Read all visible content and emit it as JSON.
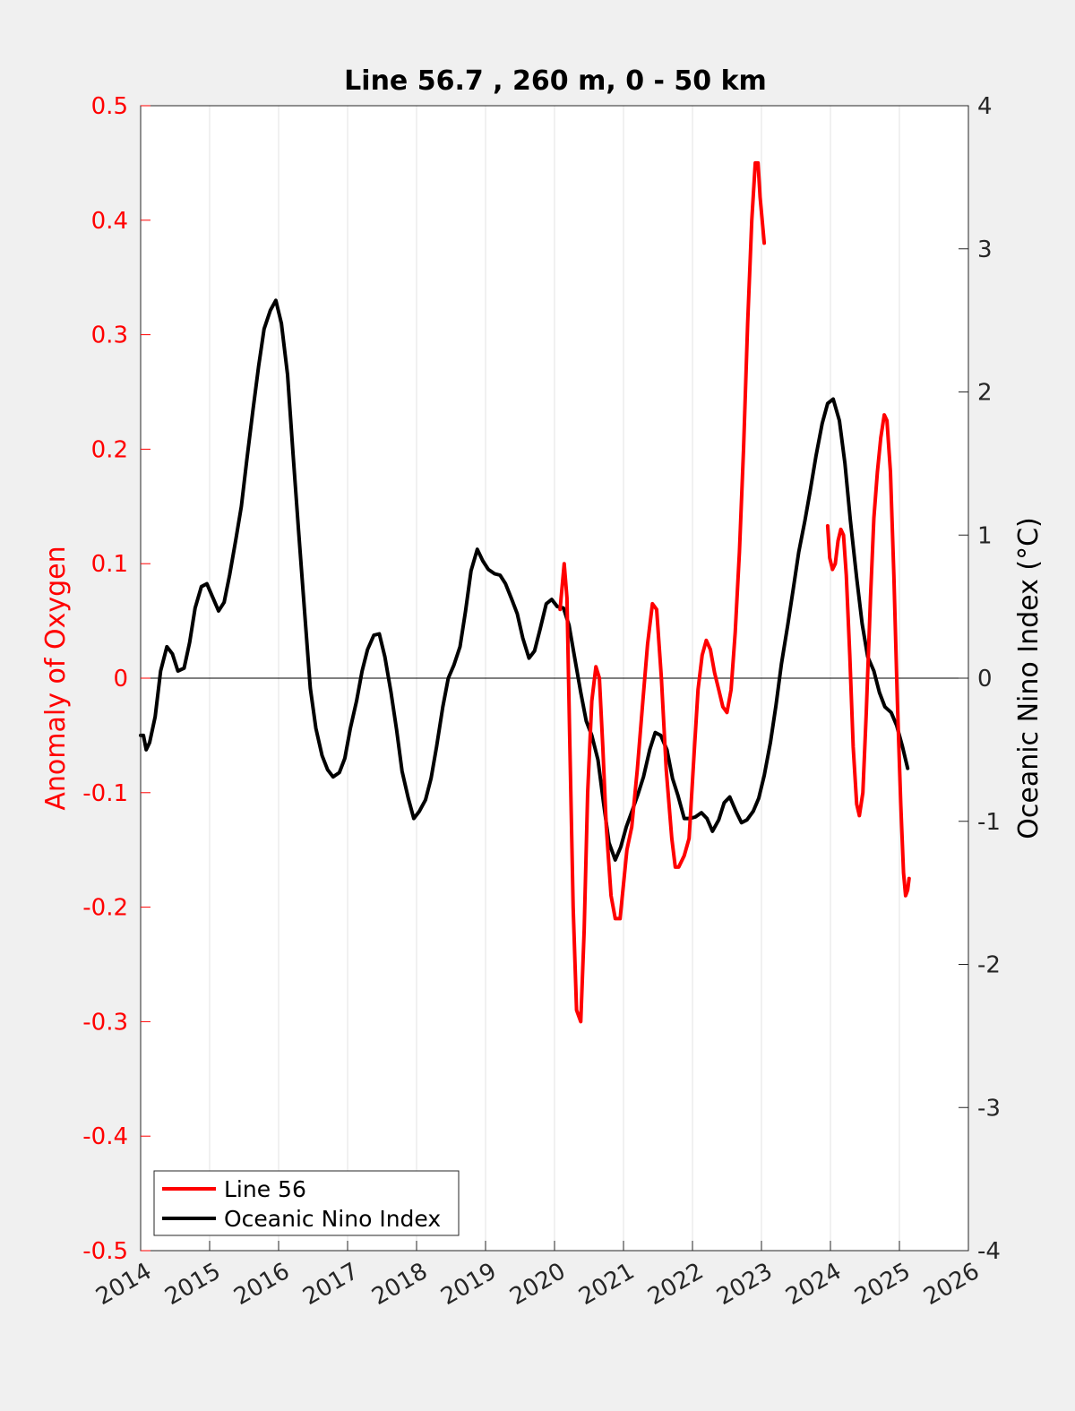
{
  "chart_data": {
    "type": "line",
    "title": "Line 56.7 , 260 m, 0 - 50 km",
    "xlabel": "",
    "ylabel_left": "Anomaly of Oxygen",
    "ylabel_right": "Oceanic Nino Index (°C)",
    "xlim": [
      2014,
      2026
    ],
    "ylim_left": [
      -0.5,
      0.5
    ],
    "ylim_right": [
      -4,
      4
    ],
    "x_ticks": [
      "2014",
      "2015",
      "2016",
      "2017",
      "2018",
      "2019",
      "2020",
      "2021",
      "2022",
      "2023",
      "2024",
      "2025",
      "2026"
    ],
    "y_ticks_left": [
      "-0.5",
      "-0.4",
      "-0.3",
      "-0.2",
      "-0.1",
      "0",
      "0.1",
      "0.2",
      "0.3",
      "0.4",
      "0.5"
    ],
    "y_ticks_right": [
      "-4",
      "-3",
      "-2",
      "-1",
      "0",
      "1",
      "2",
      "3",
      "4"
    ],
    "grid": "vertical",
    "legend_position": "bottom-left",
    "colors": {
      "line56": "#ff0000",
      "oni": "#000000",
      "left_axis": "#ff0000",
      "right_axis": "#000000"
    },
    "series": [
      {
        "name": "Line 56",
        "axis": "left",
        "segments": [
          [
            [
              2020.08,
              0.06
            ],
            [
              2020.14,
              0.1
            ],
            [
              2020.18,
              0.07
            ],
            [
              2020.22,
              -0.05
            ],
            [
              2020.27,
              -0.2
            ],
            [
              2020.32,
              -0.29
            ],
            [
              2020.38,
              -0.3
            ],
            [
              2020.43,
              -0.22
            ],
            [
              2020.48,
              -0.1
            ],
            [
              2020.54,
              -0.02
            ],
            [
              2020.6,
              0.01
            ],
            [
              2020.65,
              0.0
            ],
            [
              2020.7,
              -0.06
            ],
            [
              2020.75,
              -0.13
            ],
            [
              2020.82,
              -0.19
            ],
            [
              2020.88,
              -0.21
            ],
            [
              2020.95,
              -0.21
            ],
            [
              2021.0,
              -0.18
            ],
            [
              2021.05,
              -0.15
            ],
            [
              2021.12,
              -0.13
            ],
            [
              2021.2,
              -0.08
            ],
            [
              2021.28,
              -0.02
            ],
            [
              2021.35,
              0.03
            ],
            [
              2021.42,
              0.065
            ],
            [
              2021.48,
              0.06
            ],
            [
              2021.55,
              0.0
            ],
            [
              2021.62,
              -0.08
            ],
            [
              2021.7,
              -0.14
            ],
            [
              2021.75,
              -0.165
            ],
            [
              2021.8,
              -0.165
            ],
            [
              2021.88,
              -0.155
            ],
            [
              2021.95,
              -0.14
            ],
            [
              2022.02,
              -0.07
            ],
            [
              2022.08,
              -0.01
            ],
            [
              2022.14,
              0.02
            ],
            [
              2022.2,
              0.033
            ],
            [
              2022.26,
              0.025
            ],
            [
              2022.32,
              0.005
            ],
            [
              2022.38,
              -0.01
            ],
            [
              2022.44,
              -0.025
            ],
            [
              2022.5,
              -0.03
            ],
            [
              2022.56,
              -0.01
            ],
            [
              2022.62,
              0.04
            ],
            [
              2022.68,
              0.11
            ],
            [
              2022.74,
              0.2
            ],
            [
              2022.8,
              0.31
            ],
            [
              2022.86,
              0.4
            ],
            [
              2022.91,
              0.45
            ],
            [
              2022.95,
              0.45
            ],
            [
              2022.98,
              0.42
            ],
            [
              2023.04,
              0.38
            ]
          ],
          [
            [
              2023.96,
              0.133
            ],
            [
              2023.99,
              0.105
            ],
            [
              2024.03,
              0.095
            ],
            [
              2024.07,
              0.1
            ],
            [
              2024.11,
              0.12
            ],
            [
              2024.15,
              0.13
            ],
            [
              2024.19,
              0.125
            ],
            [
              2024.23,
              0.09
            ],
            [
              2024.28,
              0.02
            ],
            [
              2024.33,
              -0.06
            ],
            [
              2024.38,
              -0.11
            ],
            [
              2024.42,
              -0.12
            ],
            [
              2024.47,
              -0.1
            ],
            [
              2024.52,
              -0.03
            ],
            [
              2024.58,
              0.07
            ],
            [
              2024.63,
              0.14
            ],
            [
              2024.68,
              0.18
            ],
            [
              2024.73,
              0.21
            ],
            [
              2024.78,
              0.23
            ],
            [
              2024.82,
              0.225
            ],
            [
              2024.87,
              0.18
            ],
            [
              2024.92,
              0.09
            ],
            [
              2024.97,
              -0.02
            ],
            [
              2025.02,
              -0.11
            ],
            [
              2025.06,
              -0.17
            ],
            [
              2025.09,
              -0.19
            ],
            [
              2025.12,
              -0.185
            ],
            [
              2025.14,
              -0.175
            ]
          ]
        ]
      },
      {
        "name": "Oceanic Nino Index",
        "axis": "right",
        "segments": [
          [
            [
              2014.0,
              -0.4
            ],
            [
              2014.04,
              -0.4
            ],
            [
              2014.08,
              -0.5
            ],
            [
              2014.13,
              -0.45
            ],
            [
              2014.21,
              -0.27
            ],
            [
              2014.29,
              0.05
            ],
            [
              2014.38,
              0.22
            ],
            [
              2014.46,
              0.17
            ],
            [
              2014.54,
              0.05
            ],
            [
              2014.63,
              0.07
            ],
            [
              2014.71,
              0.25
            ],
            [
              2014.79,
              0.49
            ],
            [
              2014.88,
              0.64
            ],
            [
              2014.96,
              0.66
            ],
            [
              2015.04,
              0.57
            ],
            [
              2015.13,
              0.47
            ],
            [
              2015.21,
              0.53
            ],
            [
              2015.29,
              0.72
            ],
            [
              2015.38,
              0.97
            ],
            [
              2015.46,
              1.2
            ],
            [
              2015.54,
              1.53
            ],
            [
              2015.63,
              1.88
            ],
            [
              2015.71,
              2.18
            ],
            [
              2015.79,
              2.44
            ],
            [
              2015.88,
              2.57
            ],
            [
              2015.96,
              2.64
            ],
            [
              2016.04,
              2.48
            ],
            [
              2016.13,
              2.12
            ],
            [
              2016.21,
              1.56
            ],
            [
              2016.29,
              1.03
            ],
            [
              2016.38,
              0.44
            ],
            [
              2016.46,
              -0.07
            ],
            [
              2016.54,
              -0.35
            ],
            [
              2016.63,
              -0.54
            ],
            [
              2016.71,
              -0.64
            ],
            [
              2016.79,
              -0.69
            ],
            [
              2016.88,
              -0.66
            ],
            [
              2016.96,
              -0.56
            ],
            [
              2017.04,
              -0.35
            ],
            [
              2017.13,
              -0.16
            ],
            [
              2017.21,
              0.05
            ],
            [
              2017.29,
              0.2
            ],
            [
              2017.38,
              0.3
            ],
            [
              2017.46,
              0.31
            ],
            [
              2017.54,
              0.15
            ],
            [
              2017.63,
              -0.1
            ],
            [
              2017.71,
              -0.36
            ],
            [
              2017.79,
              -0.65
            ],
            [
              2017.88,
              -0.84
            ],
            [
              2017.96,
              -0.98
            ],
            [
              2018.04,
              -0.93
            ],
            [
              2018.13,
              -0.85
            ],
            [
              2018.21,
              -0.7
            ],
            [
              2018.29,
              -0.48
            ],
            [
              2018.38,
              -0.2
            ],
            [
              2018.46,
              0.0
            ],
            [
              2018.54,
              0.09
            ],
            [
              2018.63,
              0.22
            ],
            [
              2018.71,
              0.47
            ],
            [
              2018.79,
              0.75
            ],
            [
              2018.88,
              0.9
            ],
            [
              2018.96,
              0.82
            ],
            [
              2019.04,
              0.76
            ],
            [
              2019.13,
              0.73
            ],
            [
              2019.21,
              0.72
            ],
            [
              2019.29,
              0.66
            ],
            [
              2019.38,
              0.55
            ],
            [
              2019.46,
              0.45
            ],
            [
              2019.54,
              0.28
            ],
            [
              2019.63,
              0.14
            ],
            [
              2019.71,
              0.19
            ],
            [
              2019.79,
              0.34
            ],
            [
              2019.88,
              0.52
            ],
            [
              2019.96,
              0.55
            ],
            [
              2020.04,
              0.5
            ],
            [
              2020.13,
              0.49
            ],
            [
              2020.21,
              0.37
            ],
            [
              2020.29,
              0.15
            ],
            [
              2020.38,
              -0.1
            ],
            [
              2020.46,
              -0.3
            ],
            [
              2020.54,
              -0.4
            ],
            [
              2020.63,
              -0.57
            ],
            [
              2020.71,
              -0.87
            ],
            [
              2020.79,
              -1.15
            ],
            [
              2020.88,
              -1.27
            ],
            [
              2020.96,
              -1.18
            ],
            [
              2021.04,
              -1.04
            ],
            [
              2021.13,
              -0.92
            ],
            [
              2021.21,
              -0.81
            ],
            [
              2021.29,
              -0.69
            ],
            [
              2021.38,
              -0.5
            ],
            [
              2021.46,
              -0.38
            ],
            [
              2021.54,
              -0.4
            ],
            [
              2021.63,
              -0.5
            ],
            [
              2021.71,
              -0.7
            ],
            [
              2021.79,
              -0.82
            ],
            [
              2021.88,
              -0.98
            ],
            [
              2021.96,
              -0.98
            ],
            [
              2022.04,
              -0.97
            ],
            [
              2022.13,
              -0.94
            ],
            [
              2022.21,
              -0.98
            ],
            [
              2022.29,
              -1.07
            ],
            [
              2022.38,
              -0.99
            ],
            [
              2022.46,
              -0.87
            ],
            [
              2022.54,
              -0.83
            ],
            [
              2022.63,
              -0.93
            ],
            [
              2022.71,
              -1.01
            ],
            [
              2022.79,
              -0.99
            ],
            [
              2022.88,
              -0.93
            ],
            [
              2022.96,
              -0.84
            ],
            [
              2023.04,
              -0.68
            ],
            [
              2023.13,
              -0.45
            ],
            [
              2023.21,
              -0.19
            ],
            [
              2023.29,
              0.1
            ],
            [
              2023.38,
              0.37
            ],
            [
              2023.46,
              0.62
            ],
            [
              2023.54,
              0.88
            ],
            [
              2023.63,
              1.1
            ],
            [
              2023.71,
              1.32
            ],
            [
              2023.79,
              1.55
            ],
            [
              2023.88,
              1.78
            ],
            [
              2023.96,
              1.92
            ],
            [
              2024.04,
              1.95
            ],
            [
              2024.13,
              1.8
            ],
            [
              2024.21,
              1.5
            ],
            [
              2024.29,
              1.1
            ],
            [
              2024.38,
              0.7
            ],
            [
              2024.46,
              0.38
            ],
            [
              2024.54,
              0.15
            ],
            [
              2024.63,
              0.05
            ],
            [
              2024.71,
              -0.1
            ],
            [
              2024.79,
              -0.2
            ],
            [
              2024.88,
              -0.24
            ],
            [
              2024.96,
              -0.33
            ],
            [
              2025.04,
              -0.47
            ],
            [
              2025.12,
              -0.63
            ]
          ]
        ]
      }
    ],
    "legend": [
      {
        "label": "Line 56",
        "color": "#ff0000"
      },
      {
        "label": "Oceanic Nino Index",
        "color": "#000000"
      }
    ]
  }
}
